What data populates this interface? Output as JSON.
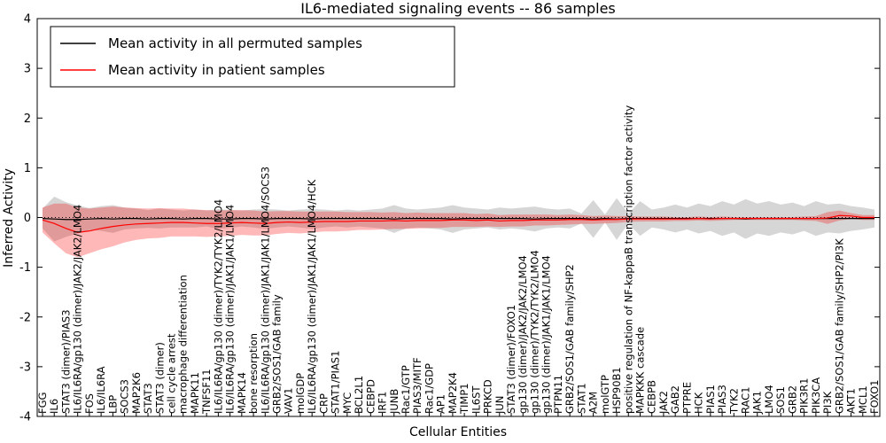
{
  "title": "IL6-mediated signaling events -- 86 samples",
  "axes": {
    "x_label": "Cellular Entities",
    "y_label": "Inferred Activity",
    "y_ticks": [
      -4,
      -3,
      -2,
      -1,
      0,
      1,
      2,
      3,
      4
    ]
  },
  "legend": {
    "entries": [
      {
        "label": "Mean activity in all permuted samples",
        "color": "#000000"
      },
      {
        "label": "Mean activity in patient samples",
        "color": "#ff0000"
      }
    ]
  },
  "colors": {
    "permuted_line": "#000000",
    "patient_line": "#ff0000",
    "permuted_band": "rgba(0,0,0,0.16)",
    "patient_band": "rgba(255,0,0,0.28)",
    "frame": "#000000"
  },
  "chart_data": {
    "type": "line",
    "title": "IL6-mediated signaling events -- 86 samples",
    "xlabel": "Cellular Entities",
    "ylabel": "Inferred Activity",
    "ylim": [
      -4,
      4
    ],
    "grid": false,
    "legend_position": "upper left",
    "zero_line": {
      "y": 0,
      "style": "dotted"
    },
    "categories": [
      "FGG",
      "IL6",
      "STAT3 (dimer)/PIAS3",
      "IL6/IL6RA/gp130 (dimer)/JAK2/JAK2/LMO4",
      "FOS",
      "IL6/IL6RA",
      "LBP",
      "SOCS3",
      "MAP2K6",
      "STAT3",
      "STAT3 (dimer)",
      "cell cycle arrest",
      "macrophage differentiation",
      "MAPK11",
      "TNFSF11",
      "IL6/IL6RA/gp130 (dimer)/TYK2/TYK2/LMO4",
      "IL6/IL6RA/gp130 (dimer)/JAK1/JAK1/LMO4",
      "MAPK14",
      "bone resorption",
      "IL6/IL6RA/gp130 (dimer)/JAK1/JAK1/LMO4/SOCS3",
      "GRB2/SOS1/GAB family",
      "VAV1",
      "molGDP",
      "IL6/IL6RA/gp130 (dimer)/JAK1/JAK1/LMO4/HCK",
      "CRP",
      "STAT1/PIAS1",
      "MYC",
      "BCL2L1",
      "CEBPD",
      "IRF1",
      "JUNB",
      "Rac1/GTP",
      "PIAS3/MITF",
      "Rac1/GDP",
      "AP1",
      "MAP2K4",
      "TIMP1",
      "IL6ST",
      "PRKCD",
      "JUN",
      "STAT3 (dimer)/FOXO1",
      "gp130 (dimer)/JAK2/JAK2/LMO4",
      "gp130 (dimer)/TYK2/TYK2/LMO4",
      "gp130 (dimer)/JAK1/JAK1/LMO4",
      "PTPN11",
      "GRB2/SOS1/GAB family/SHP2",
      "STAT1",
      "A2M",
      "molGTP",
      "HSP90B1",
      "positive regulation of NF-kappaB transcription factor activity",
      "MAPKKK cascade",
      "CEBPB",
      "JAK2",
      "GAB2",
      "PTPRE",
      "HCK",
      "PIAS1",
      "PIAS3",
      "TYK2",
      "RAC1",
      "JAK1",
      "LMO4",
      "SOS1",
      "GRB2",
      "PIK3R1",
      "PIK3CA",
      "PI3K",
      "GRB2/SOS1/GAB family/SHP2/PI3K",
      "AKT1",
      "MCL1",
      "FOXO1"
    ],
    "series": [
      {
        "name": "Mean activity in all permuted samples",
        "color": "#000000",
        "values": [
          -0.02,
          -0.03,
          -0.04,
          -0.04,
          -0.03,
          -0.02,
          -0.03,
          -0.02,
          -0.02,
          -0.03,
          -0.02,
          -0.02,
          -0.03,
          -0.02,
          -0.02,
          -0.03,
          -0.03,
          -0.02,
          -0.02,
          -0.03,
          -0.02,
          -0.02,
          -0.02,
          -0.03,
          -0.02,
          -0.02,
          -0.02,
          -0.02,
          -0.02,
          -0.02,
          -0.03,
          -0.02,
          -0.02,
          -0.02,
          -0.02,
          -0.03,
          -0.02,
          -0.02,
          -0.02,
          -0.02,
          -0.02,
          -0.02,
          -0.03,
          -0.02,
          -0.02,
          -0.02,
          -0.02,
          -0.03,
          -0.02,
          -0.03,
          -0.02,
          -0.02,
          -0.02,
          -0.02,
          -0.02,
          -0.02,
          -0.02,
          -0.02,
          -0.02,
          -0.02,
          -0.03,
          -0.02,
          -0.02,
          -0.02,
          -0.02,
          -0.02,
          -0.02,
          -0.02,
          -0.02,
          -0.02,
          -0.02,
          -0.02
        ],
        "band_halfwidth": [
          0.2,
          0.45,
          0.35,
          0.28,
          0.22,
          0.25,
          0.28,
          0.22,
          0.2,
          0.18,
          0.2,
          0.18,
          0.17,
          0.18,
          0.16,
          0.2,
          0.18,
          0.16,
          0.18,
          0.2,
          0.18,
          0.16,
          0.18,
          0.2,
          0.18,
          0.16,
          0.18,
          0.16,
          0.18,
          0.2,
          0.28,
          0.2,
          0.18,
          0.2,
          0.22,
          0.28,
          0.22,
          0.2,
          0.18,
          0.22,
          0.2,
          0.22,
          0.25,
          0.2,
          0.18,
          0.2,
          0.1,
          0.38,
          0.08,
          0.42,
          0.1,
          0.35,
          0.18,
          0.22,
          0.28,
          0.22,
          0.3,
          0.25,
          0.35,
          0.28,
          0.4,
          0.3,
          0.35,
          0.28,
          0.32,
          0.25,
          0.35,
          0.28,
          0.3,
          0.25,
          0.22,
          0.18
        ]
      },
      {
        "name": "Mean activity in patient samples",
        "color": "#ff0000",
        "values": [
          -0.05,
          -0.12,
          -0.22,
          -0.3,
          -0.27,
          -0.22,
          -0.18,
          -0.15,
          -0.13,
          -0.12,
          -0.11,
          -0.1,
          -0.1,
          -0.11,
          -0.12,
          -0.12,
          -0.11,
          -0.1,
          -0.11,
          -0.12,
          -0.1,
          -0.09,
          -0.1,
          -0.09,
          -0.08,
          -0.08,
          -0.08,
          -0.07,
          -0.07,
          -0.07,
          -0.06,
          -0.07,
          -0.06,
          -0.06,
          -0.06,
          -0.05,
          -0.05,
          -0.06,
          -0.05,
          -0.07,
          -0.06,
          -0.06,
          -0.05,
          -0.05,
          -0.05,
          -0.04,
          -0.04,
          -0.05,
          -0.04,
          -0.04,
          -0.03,
          -0.03,
          -0.03,
          -0.03,
          -0.03,
          -0.03,
          -0.02,
          -0.03,
          -0.02,
          -0.02,
          -0.02,
          -0.02,
          -0.02,
          -0.02,
          -0.02,
          -0.02,
          -0.02,
          -0.01,
          0.04,
          0.03,
          0.0,
          0.0
        ],
        "band_halfwidth": [
          0.25,
          0.4,
          0.5,
          0.5,
          0.45,
          0.42,
          0.4,
          0.35,
          0.32,
          0.3,
          0.3,
          0.28,
          0.28,
          0.27,
          0.27,
          0.26,
          0.26,
          0.25,
          0.25,
          0.24,
          0.23,
          0.22,
          0.22,
          0.21,
          0.2,
          0.2,
          0.19,
          0.18,
          0.18,
          0.17,
          0.17,
          0.16,
          0.16,
          0.15,
          0.15,
          0.14,
          0.14,
          0.13,
          0.13,
          0.12,
          0.12,
          0.12,
          0.11,
          0.11,
          0.1,
          0.1,
          0.09,
          0.08,
          0.08,
          0.07,
          0.06,
          0.05,
          0.05,
          0.05,
          0.04,
          0.04,
          0.04,
          0.04,
          0.04,
          0.03,
          0.03,
          0.03,
          0.03,
          0.03,
          0.03,
          0.04,
          0.05,
          0.12,
          0.1,
          0.06,
          0.05,
          0.05
        ]
      }
    ]
  }
}
